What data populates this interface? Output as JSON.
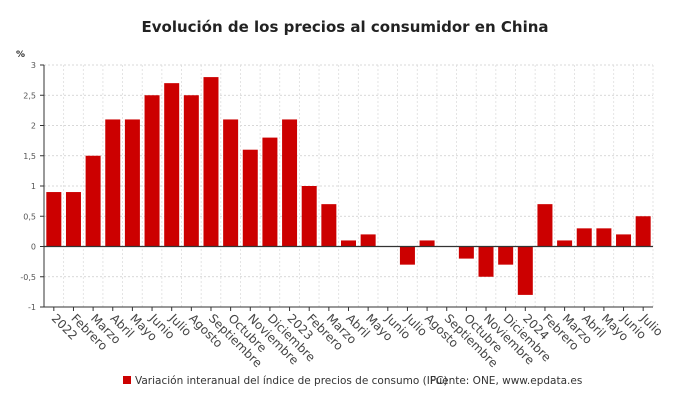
{
  "chart_data": {
    "type": "bar",
    "title": "Evolución de los precios al consumidor en China",
    "ylabel": "%",
    "xlabel": "",
    "ylim": [
      -1,
      3
    ],
    "yticks": [
      -1,
      -0.5,
      0,
      0.5,
      1,
      1.5,
      2,
      2.5,
      3
    ],
    "ytick_labels": [
      "-1",
      "-0,5",
      "0",
      "0,5",
      "1",
      "1,5",
      "2",
      "2,5",
      "3"
    ],
    "grid": true,
    "legend_position": "bottom",
    "bar_color": "#cc0000",
    "categories": [
      "2022",
      "Febrero",
      "Marzo",
      "Abril",
      "Mayo",
      "Junio",
      "Julio",
      "Agosto",
      "Septiembre",
      "Octubre",
      "Noviembre",
      "Diciembre",
      "2023",
      "Febrero",
      "Marzo",
      "Abril",
      "Mayo",
      "Junio",
      "Julio",
      "Agosto",
      "Septiembre",
      "Octubre",
      "Noviembre",
      "Diciembre",
      "2024",
      "Febrero",
      "Marzo",
      "Abril",
      "Mayo",
      "Junio",
      "Julio"
    ],
    "series": [
      {
        "name": "Variación interanual del índice de precios de consumo (IPC)",
        "values": [
          0.9,
          0.9,
          1.5,
          2.1,
          2.1,
          2.5,
          2.7,
          2.5,
          2.8,
          2.1,
          1.6,
          1.8,
          2.1,
          1.0,
          0.7,
          0.1,
          0.2,
          0,
          -0.3,
          0.1,
          0,
          -0.2,
          -0.5,
          -0.3,
          -0.8,
          0.7,
          0.1,
          0.3,
          0.3,
          0.2,
          0.5
        ]
      }
    ],
    "source": "Fuente: ONE, www.epdata.es"
  }
}
